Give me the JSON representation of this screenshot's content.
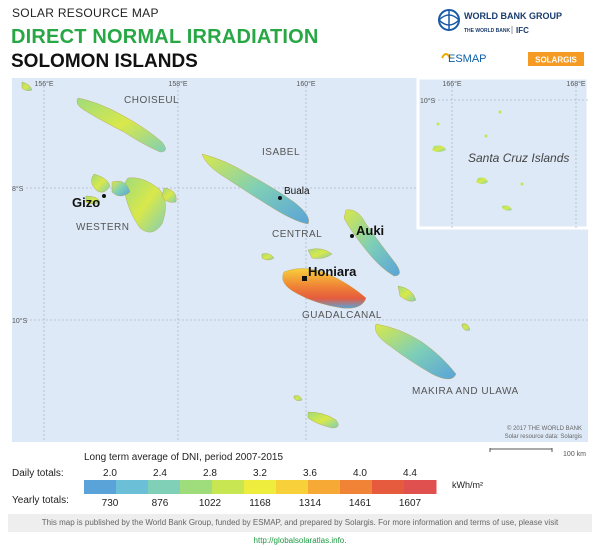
{
  "header": {
    "kicker": "SOLAR RESOURCE MAP",
    "title": "DIRECT NORMAL IRRADIATION",
    "country": "SOLOMON ISLANDS"
  },
  "logos": {
    "wbg": "WORLD BANK GROUP",
    "wb": "THE WORLD BANK",
    "ifc": "IFC",
    "esmap": "ESMAP",
    "solargis": "SOLARGIS"
  },
  "map": {
    "graticule": {
      "lon": [
        "156°E",
        "158°E",
        "160°E"
      ],
      "lat": [
        "8°S",
        "10°S"
      ]
    },
    "inset_graticule": {
      "lon": [
        "166°E",
        "168°E"
      ],
      "lat": [
        "10°S"
      ]
    },
    "regions": [
      "CHOISEUL",
      "ISABEL",
      "WESTERN",
      "CENTRAL",
      "GUADALCANAL",
      "MAKIRA AND ULAWA"
    ],
    "cities": [
      {
        "name": "Gizo",
        "kind": "town"
      },
      {
        "name": "Buala",
        "kind": "town"
      },
      {
        "name": "Auki",
        "kind": "town"
      },
      {
        "name": "Honiara",
        "kind": "capital"
      }
    ],
    "inset_label": "Santa Cruz Islands",
    "copyright": "© 2017 THE WORLD BANK",
    "source": "Solar resource data: Solargis",
    "scale": "100 km"
  },
  "legend": {
    "caption": "Long term average of DNI, period 2007-2015",
    "daily_label": "Daily totals:",
    "yearly_label": "Yearly totals:",
    "daily": [
      "2.0",
      "2.4",
      "2.8",
      "3.2",
      "3.6",
      "4.0",
      "4.4"
    ],
    "yearly": [
      "730",
      "876",
      "1022",
      "1168",
      "1314",
      "1461",
      "1607"
    ],
    "unit": "kWh/m²",
    "colors": [
      "#5aa3d9",
      "#6bbfd6",
      "#7fd0b6",
      "#9fdc7c",
      "#c8e552",
      "#eeec3c",
      "#f7d03a",
      "#f6a935",
      "#f08336",
      "#e65b3d",
      "#e0504f"
    ]
  },
  "footer": {
    "text": "This map is published by the World Bank Group, funded by ESMAP, and prepared by Solargis. For more information and terms of use, please visit ",
    "link": "http://globalsolaratlas.info",
    "end": "."
  }
}
